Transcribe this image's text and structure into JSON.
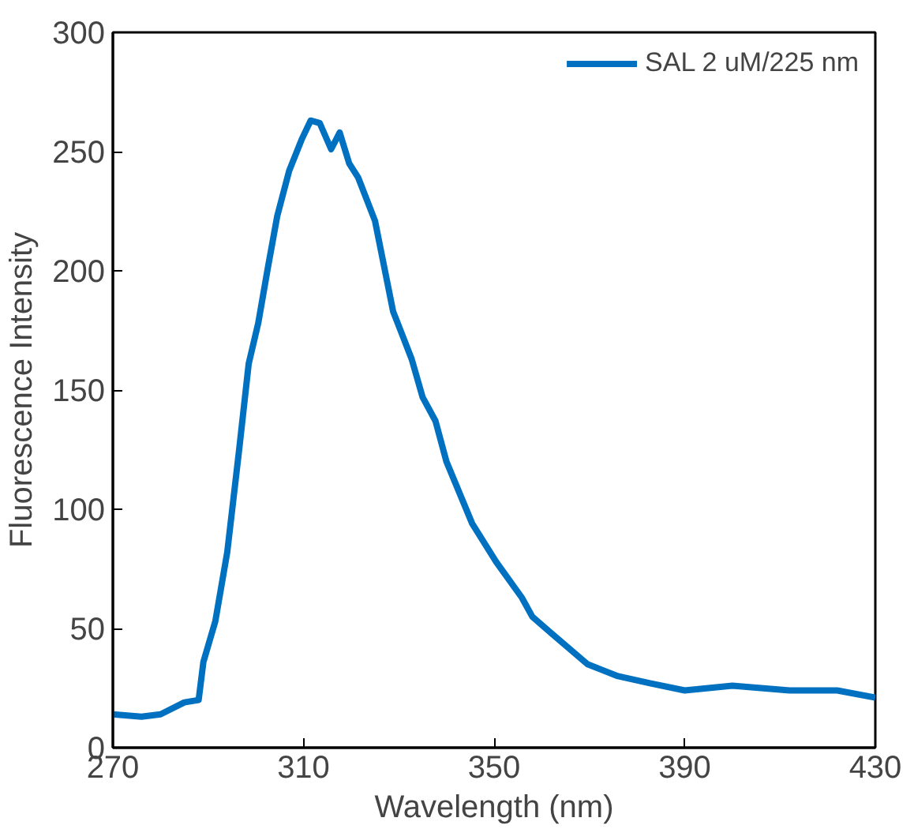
{
  "chart_data": {
    "type": "line",
    "xlabel": "Wavelength (nm)",
    "ylabel": "Fluorescence Intensity",
    "xlim": [
      270,
      430
    ],
    "xticks": [
      270,
      310,
      350,
      390,
      430
    ],
    "ylim": [
      0,
      300
    ],
    "yticks": [
      0,
      50,
      100,
      150,
      200,
      250,
      300
    ],
    "grid": false,
    "legend": "top right",
    "marker": "none",
    "line_style": "solid",
    "series": [
      {
        "name": "SAL 2 uM/225 nm",
        "color": "#0070c0",
        "x": [
          270,
          276,
          280,
          285,
          288,
          289,
          291.5,
          294,
          296.5,
          298.5,
          300.5,
          302.5,
          304.5,
          307,
          309.6,
          311.5,
          313.4,
          315.8,
          317.6,
          319.6,
          321.5,
          325,
          328.8,
          332.7,
          335,
          337.7,
          340,
          345.4,
          350.4,
          355.8,
          358,
          362,
          369.6,
          376,
          382.7,
          390,
          400,
          412,
          422,
          430
        ],
        "values": [
          14,
          13,
          14,
          19,
          20,
          36,
          53,
          82,
          125,
          161,
          178,
          201,
          223,
          242,
          255,
          263,
          262,
          251,
          258,
          245,
          239,
          221,
          183,
          163,
          147,
          137,
          120,
          94,
          78,
          63,
          55,
          48,
          35,
          30,
          27,
          24,
          26,
          24,
          24,
          21
        ]
      }
    ]
  }
}
